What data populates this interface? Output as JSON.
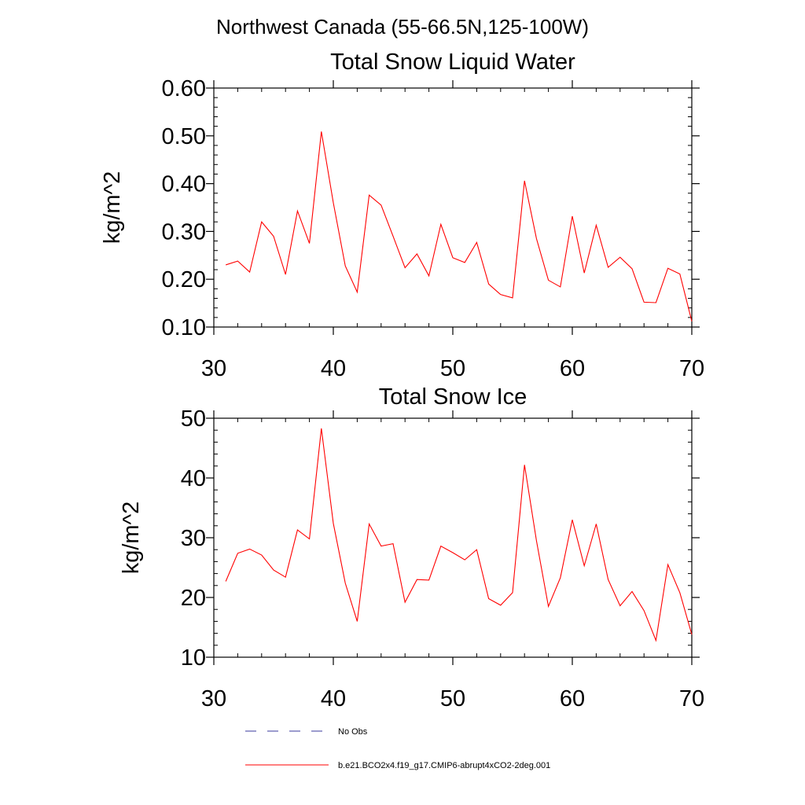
{
  "figure": {
    "suptitle": "Northwest Canada (55-66.5N,125-100W)"
  },
  "chart_data": [
    {
      "type": "line",
      "title": "Total Snow Liquid Water",
      "xlabel": "",
      "ylabel": "kg/m^2",
      "xlim": [
        30,
        70
      ],
      "ylim": [
        0.1,
        0.6
      ],
      "xticks": [
        30,
        40,
        50,
        60,
        70
      ],
      "xtick_labels": [
        "30",
        "40",
        "50",
        "60",
        "70"
      ],
      "yticks": [
        0.1,
        0.2,
        0.3,
        0.4,
        0.5,
        0.6
      ],
      "ytick_labels": [
        "0.10",
        "0.20",
        "0.30",
        "0.40",
        "0.50",
        "0.60"
      ],
      "x_minor_step": 2,
      "y_minor_step": 0.02,
      "series": [
        {
          "name": "b.e21.BCO2x4.f19_g17.CMIP6-abrupt4xCO2-2deg.001",
          "color": "#ff0000",
          "x": [
            31,
            32,
            33,
            34,
            35,
            36,
            37,
            38,
            39,
            40,
            41,
            42,
            43,
            44,
            45,
            46,
            47,
            48,
            49,
            50,
            51,
            52,
            53,
            54,
            55,
            56,
            57,
            58,
            59,
            60,
            61,
            62,
            63,
            64,
            65,
            66,
            67,
            68,
            69,
            70
          ],
          "values": [
            0.23,
            0.238,
            0.215,
            0.32,
            0.29,
            0.21,
            0.343,
            0.275,
            0.509,
            0.36,
            0.228,
            0.173,
            0.376,
            0.355,
            0.29,
            0.224,
            0.253,
            0.207,
            0.315,
            0.245,
            0.235,
            0.277,
            0.19,
            0.168,
            0.161,
            0.406,
            0.285,
            0.198,
            0.184,
            0.332,
            0.213,
            0.313,
            0.225,
            0.246,
            0.222,
            0.152,
            0.151,
            0.223,
            0.211,
            0.112
          ]
        }
      ]
    },
    {
      "type": "line",
      "title": "Total Snow Ice",
      "xlabel": "",
      "ylabel": "kg/m^2",
      "xlim": [
        30,
        70
      ],
      "ylim": [
        10,
        50
      ],
      "xticks": [
        30,
        40,
        50,
        60,
        70
      ],
      "xtick_labels": [
        "30",
        "40",
        "50",
        "60",
        "70"
      ],
      "yticks": [
        10,
        20,
        30,
        40,
        50
      ],
      "ytick_labels": [
        "10",
        "20",
        "30",
        "40",
        "50"
      ],
      "x_minor_step": 2,
      "y_minor_step": 2,
      "series": [
        {
          "name": "b.e21.BCO2x4.f19_g17.CMIP6-abrupt4xCO2-2deg.001",
          "color": "#ff0000",
          "x": [
            31,
            32,
            33,
            34,
            35,
            36,
            37,
            38,
            39,
            40,
            41,
            42,
            43,
            44,
            45,
            46,
            47,
            48,
            49,
            50,
            51,
            52,
            53,
            54,
            55,
            56,
            57,
            58,
            59,
            60,
            61,
            62,
            63,
            64,
            65,
            66,
            67,
            68,
            69,
            70
          ],
          "values": [
            22.7,
            27.4,
            28.1,
            27.1,
            24.6,
            23.4,
            31.3,
            29.8,
            48.3,
            32.4,
            22.4,
            16.0,
            32.3,
            28.6,
            29.0,
            19.2,
            23.0,
            22.9,
            28.6,
            27.5,
            26.3,
            28.0,
            19.8,
            18.7,
            20.8,
            42.2,
            29.5,
            18.5,
            23.3,
            33.0,
            25.3,
            32.3,
            23.0,
            18.6,
            21.0,
            17.8,
            12.8,
            25.5,
            20.8,
            13.8
          ]
        }
      ]
    }
  ],
  "legend": {
    "placement": "bottom-left",
    "items": [
      {
        "label": "No Obs",
        "color": "#3a3a9e",
        "style": "dashed"
      },
      {
        "label": "b.e21.BCO2x4.f19_g17.CMIP6-abrupt4xCO2-2deg.001",
        "color": "#ff0000",
        "style": "solid"
      }
    ]
  }
}
